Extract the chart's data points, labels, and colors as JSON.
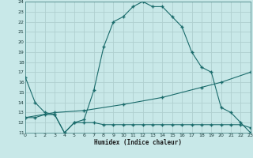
{
  "xlabel": "Humidex (Indice chaleur)",
  "xlim": [
    0,
    23
  ],
  "ylim": [
    11,
    24
  ],
  "yticks": [
    11,
    12,
    13,
    14,
    15,
    16,
    17,
    18,
    19,
    20,
    21,
    22,
    23,
    24
  ],
  "xticks": [
    0,
    1,
    2,
    3,
    4,
    5,
    6,
    7,
    8,
    9,
    10,
    11,
    12,
    13,
    14,
    15,
    16,
    17,
    18,
    19,
    20,
    21,
    22,
    23
  ],
  "bg_color": "#c8e8e8",
  "line_color": "#1a6b6b",
  "grid_color": "#b0d0d0",
  "line1_x": [
    0,
    1,
    2,
    3,
    4,
    5,
    6,
    7,
    8,
    9,
    10,
    11,
    12,
    13,
    14,
    15,
    16,
    17,
    18,
    19,
    20,
    21,
    22,
    23
  ],
  "line1_y": [
    16.5,
    14.0,
    13.0,
    12.8,
    11.0,
    12.0,
    12.3,
    15.2,
    19.5,
    22.0,
    22.5,
    23.5,
    24.0,
    23.5,
    23.5,
    22.5,
    21.5,
    19.0,
    17.5,
    17.0,
    13.5,
    13.0,
    12.0,
    11.0
  ],
  "line2_x": [
    0,
    1,
    2,
    3,
    4,
    5,
    6,
    7,
    8,
    9,
    10,
    11,
    12,
    13,
    14,
    15,
    16,
    17,
    18,
    19,
    20,
    21,
    22,
    23
  ],
  "line2_y": [
    12.5,
    12.5,
    12.8,
    12.8,
    11.0,
    12.0,
    12.0,
    12.0,
    11.8,
    11.8,
    11.8,
    11.8,
    11.8,
    11.8,
    11.8,
    11.8,
    11.8,
    11.8,
    11.8,
    11.8,
    11.8,
    11.8,
    11.8,
    11.5
  ],
  "line3_x": [
    0,
    3,
    6,
    10,
    14,
    18,
    20,
    23
  ],
  "line3_y": [
    12.5,
    13.0,
    13.2,
    13.8,
    14.5,
    15.5,
    16.0,
    17.0
  ]
}
